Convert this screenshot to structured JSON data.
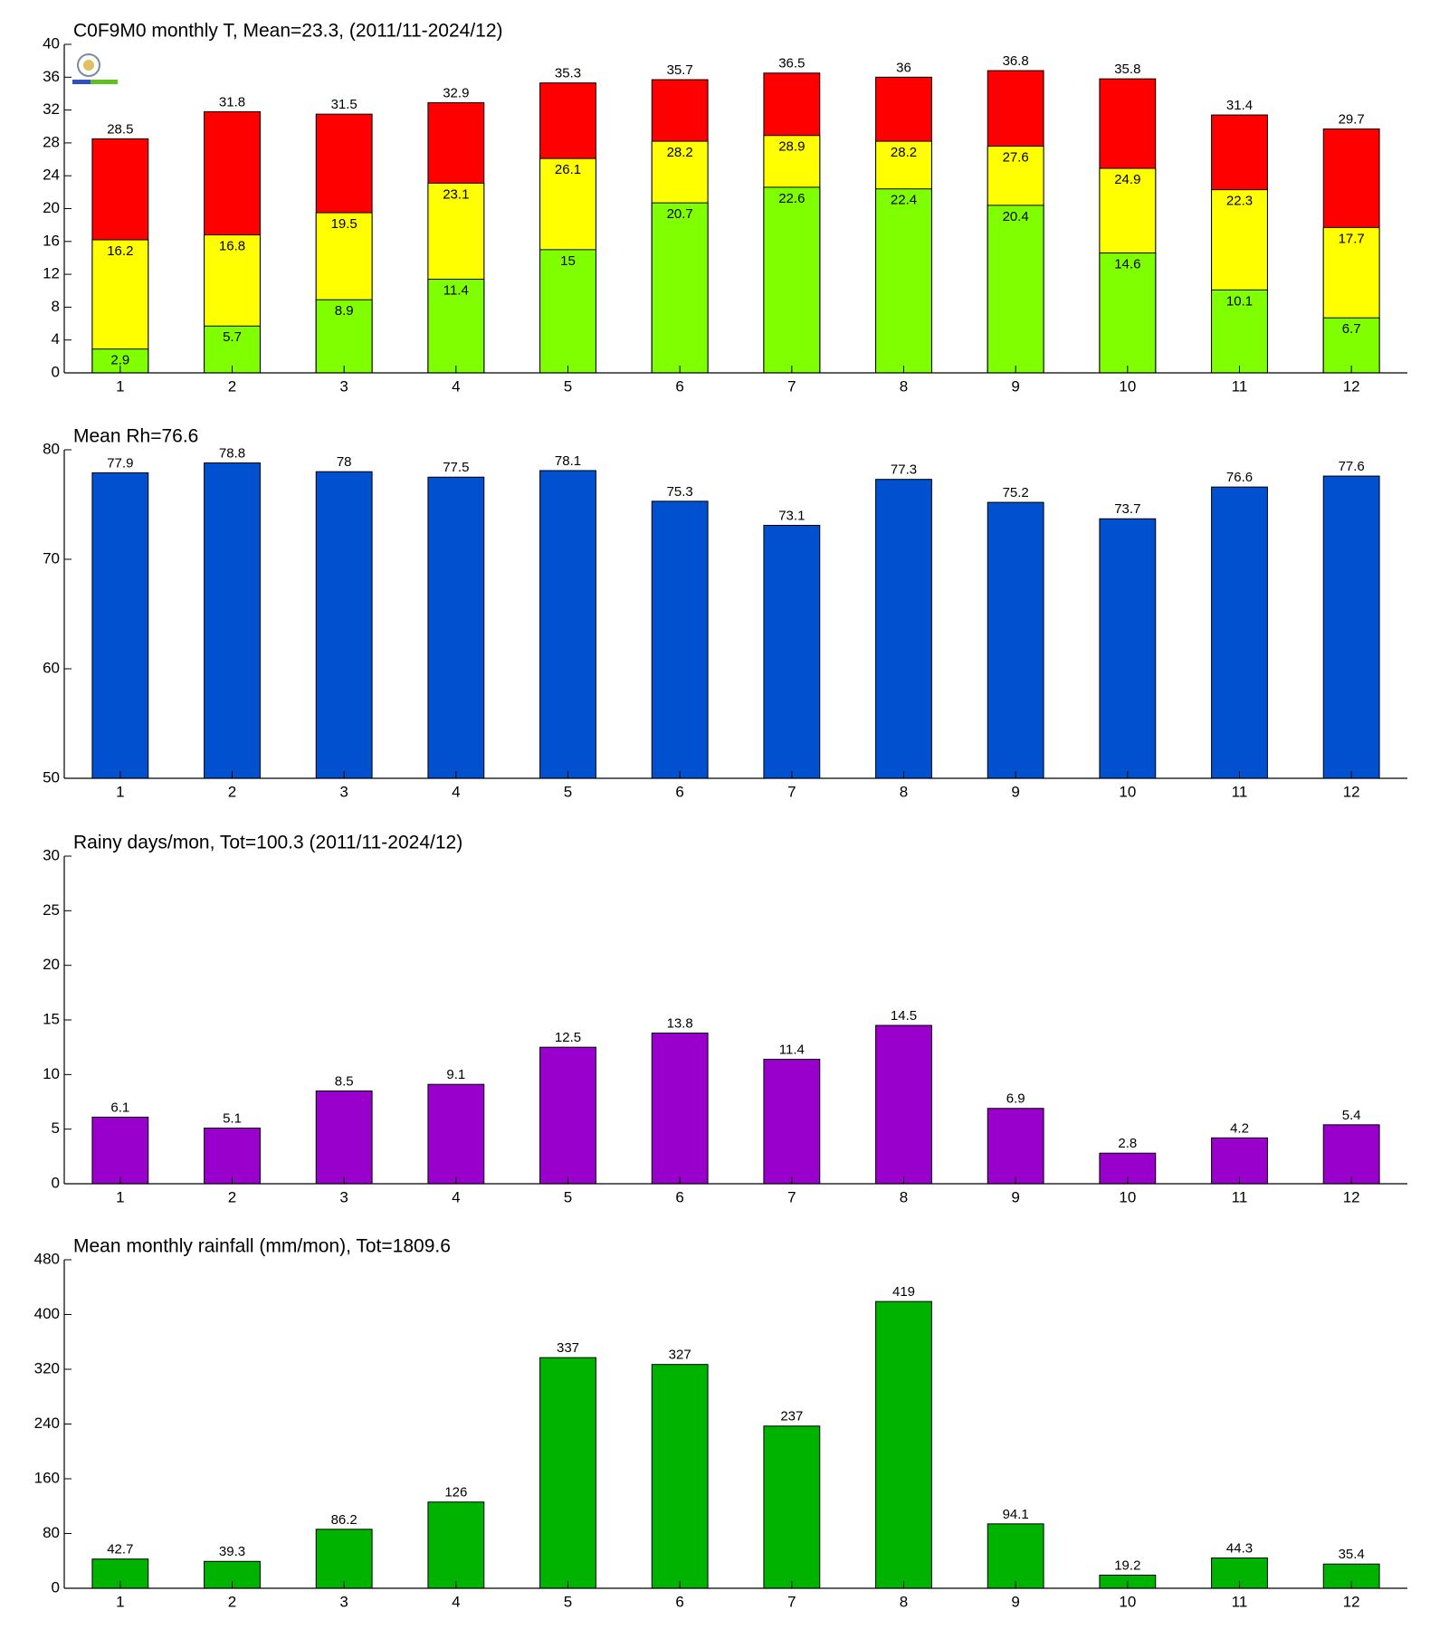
{
  "chart_data": [
    {
      "type": "bar",
      "title": "C0F9M0 monthly T, Mean=23.3, (2011/11-2024/12)",
      "categories": [
        "1",
        "2",
        "3",
        "4",
        "5",
        "6",
        "7",
        "8",
        "9",
        "10",
        "11",
        "12"
      ],
      "series": [
        {
          "color": "#ff0000",
          "label_position": "above",
          "values": [
            28.5,
            31.8,
            31.5,
            32.9,
            35.3,
            35.7,
            36.5,
            36,
            36.8,
            35.8,
            31.4,
            29.7
          ]
        },
        {
          "color": "#ffff00",
          "label_position": "inside",
          "values": [
            16.2,
            16.8,
            19.5,
            23.1,
            26.1,
            28.2,
            28.9,
            28.2,
            27.6,
            24.9,
            22.3,
            17.7
          ]
        },
        {
          "color": "#80ff00",
          "label_position": "inside",
          "values": [
            2.9,
            5.7,
            8.9,
            11.4,
            15,
            20.7,
            22.6,
            22.4,
            20.4,
            14.6,
            10.1,
            6.7
          ]
        }
      ],
      "ylim": [
        0,
        40
      ],
      "yticks": [
        0,
        4,
        8,
        12,
        16,
        20,
        24,
        28,
        32,
        36,
        40
      ]
    },
    {
      "type": "bar",
      "title": "Mean Rh=76.6",
      "categories": [
        "1",
        "2",
        "3",
        "4",
        "5",
        "6",
        "7",
        "8",
        "9",
        "10",
        "11",
        "12"
      ],
      "series": [
        {
          "color": "#0050d0",
          "label_position": "above",
          "values": [
            77.9,
            78.8,
            78,
            77.5,
            78.1,
            75.3,
            73.1,
            77.3,
            75.2,
            73.7,
            76.6,
            77.6
          ]
        }
      ],
      "ylim": [
        50,
        80
      ],
      "yticks": [
        50,
        60,
        70,
        80
      ]
    },
    {
      "type": "bar",
      "title": "Rainy days/mon, Tot=100.3 (2011/11-2024/12)",
      "categories": [
        "1",
        "2",
        "3",
        "4",
        "5",
        "6",
        "7",
        "8",
        "9",
        "10",
        "11",
        "12"
      ],
      "series": [
        {
          "color": "#9900cc",
          "label_position": "above",
          "values": [
            6.1,
            5.1,
            8.5,
            9.1,
            12.5,
            13.8,
            11.4,
            14.5,
            6.9,
            2.8,
            4.2,
            5.4
          ]
        }
      ],
      "ylim": [
        0,
        30
      ],
      "yticks": [
        0,
        5,
        10,
        15,
        20,
        25,
        30
      ]
    },
    {
      "type": "bar",
      "title": "Mean monthly rainfall (mm/mon), Tot=1809.6",
      "categories": [
        "1",
        "2",
        "3",
        "4",
        "5",
        "6",
        "7",
        "8",
        "9",
        "10",
        "11",
        "12"
      ],
      "series": [
        {
          "color": "#00b300",
          "label_position": "above",
          "values": [
            42.7,
            39.3,
            86.2,
            126,
            337,
            327,
            237,
            419,
            94.1,
            19.2,
            44.3,
            35.4
          ]
        }
      ],
      "ylim": [
        0,
        480
      ],
      "yticks": [
        0,
        80,
        160,
        240,
        320,
        400,
        480
      ]
    }
  ]
}
